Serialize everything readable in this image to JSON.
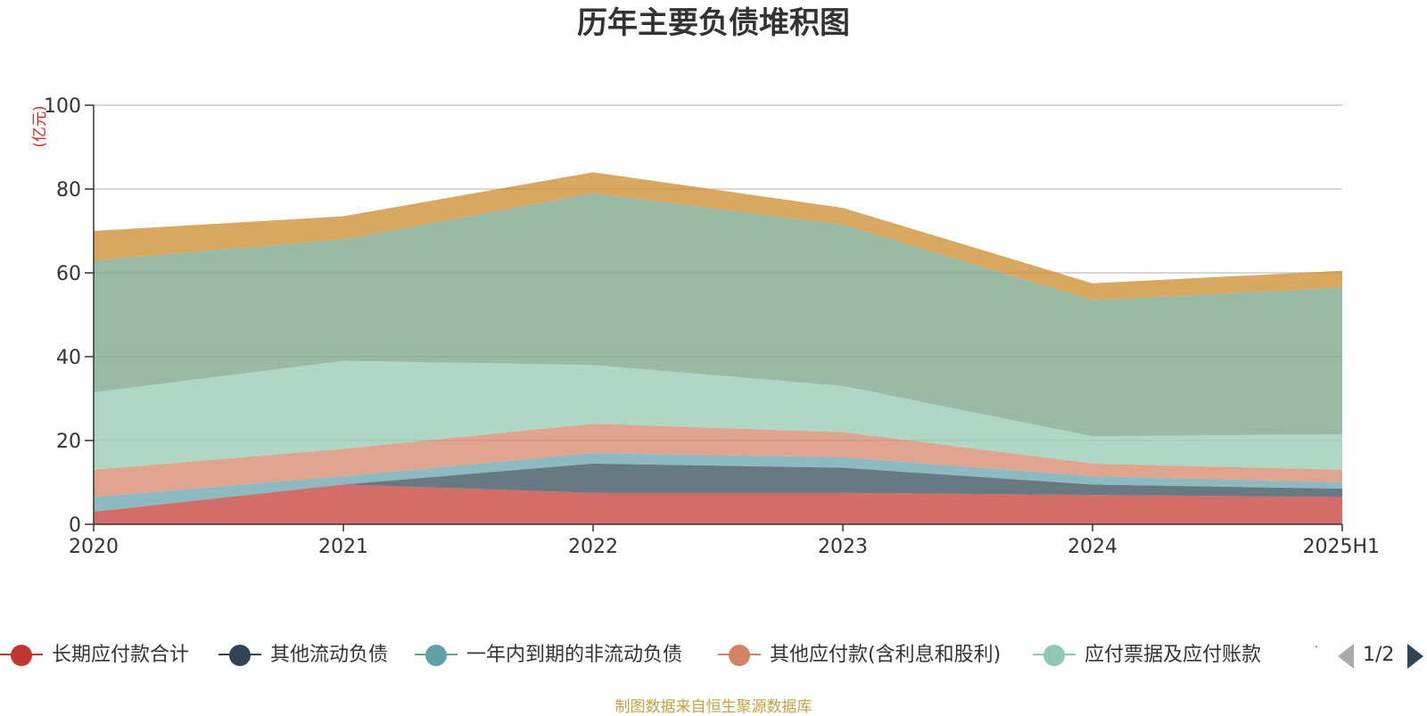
{
  "chart_data": {
    "type": "area",
    "stacked": true,
    "title": "历年主要负债堆积图",
    "ylabel": "(亿元)",
    "categories": [
      "2020",
      "2021",
      "2022",
      "2023",
      "2024",
      "2025H1"
    ],
    "ylim": [
      0,
      100
    ],
    "yticks": [
      0,
      20,
      40,
      60,
      80,
      100
    ],
    "grid": true,
    "legend_position": "bottom",
    "series": [
      {
        "name": "长期应付款合计",
        "color": "#c23531",
        "values": [
          3.0,
          9.5,
          7.5,
          7.5,
          7.0,
          6.5
        ]
      },
      {
        "name": "其他流动负债",
        "color": "#2f4554",
        "values": [
          0.0,
          0.0,
          7.0,
          6.0,
          2.5,
          2.0
        ]
      },
      {
        "name": "一年内到期的非流动负债",
        "color": "#61a0a8",
        "values": [
          3.5,
          2.0,
          2.5,
          2.5,
          2.0,
          1.5
        ]
      },
      {
        "name": "其他应付款(含利息和股利)",
        "color": "#d48265",
        "values": [
          6.5,
          6.5,
          7.0,
          6.0,
          3.0,
          3.0
        ]
      },
      {
        "name": "应付票据及应付账款",
        "color": "#91c7ae",
        "values": [
          18.5,
          21.0,
          14.0,
          11.0,
          6.5,
          8.5
        ]
      },
      {
        "color": "#749f83",
        "values": [
          31.5,
          29.0,
          41.0,
          38.5,
          32.5,
          35.0
        ]
      },
      {
        "color": "#ca8622",
        "values": [
          7.0,
          5.5,
          5.0,
          4.0,
          4.0,
          4.0
        ]
      }
    ]
  },
  "legend": {
    "page_indicator": "1/2",
    "ellipsis": "·"
  },
  "footer": {
    "source_note": "制图数据来自恒生聚源数据库"
  }
}
